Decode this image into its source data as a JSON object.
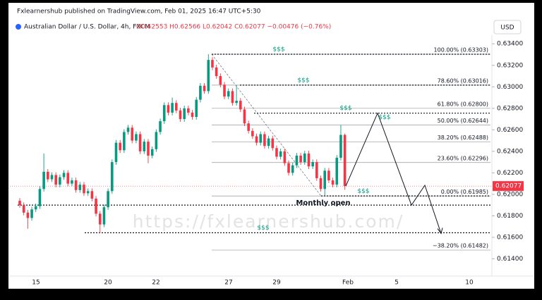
{
  "chart_data": {
    "type": "candlestick",
    "subtitle": "Fxlearnershub published on TradingView.com, Feb 01, 2025 16:47 UTC+5:30",
    "title": "Australian Dollar / U.S. Dollar, 4h, FXCM",
    "ohlc_text": "O0.62553 H0.62566 L0.62042 C0.62077 −0.00476 (−0.76%)",
    "currency": "USD",
    "watermark": "https://fxlearnershub.com/",
    "up_color": "#089981",
    "down_color": "#f23645",
    "ylim": [
      0.6124,
      0.6348
    ],
    "yticks": [
      {
        "value": 0.634,
        "label": "0.63400"
      },
      {
        "value": 0.632,
        "label": "0.63200"
      },
      {
        "value": 0.63,
        "label": "0.63000"
      },
      {
        "value": 0.628,
        "label": "0.62800"
      },
      {
        "value": 0.626,
        "label": "0.62600"
      },
      {
        "value": 0.624,
        "label": "0.62400"
      },
      {
        "value": 0.622,
        "label": "0.62200"
      },
      {
        "value": 0.62,
        "label": "0.62000"
      },
      {
        "value": 0.618,
        "label": "0.61800"
      },
      {
        "value": 0.616,
        "label": "0.61600"
      },
      {
        "value": 0.614,
        "label": "0.61400"
      }
    ],
    "xtick_labels": [
      "15",
      "20",
      "22",
      "27",
      "29",
      "Feb",
      "5",
      "10"
    ],
    "open": [
      0.6194,
      0.619,
      0.6183,
      0.6178,
      0.6186,
      0.6189,
      0.6205,
      0.6221,
      0.6214,
      0.6218,
      0.6209,
      0.6216,
      0.622,
      0.621,
      0.6213,
      0.6204,
      0.6209,
      0.6201,
      0.6203,
      0.6196,
      0.6182,
      0.6172,
      0.6188,
      0.6203,
      0.623,
      0.6248,
      0.6241,
      0.6258,
      0.6262,
      0.625,
      0.6256,
      0.624,
      0.6249,
      0.6236,
      0.6242,
      0.6258,
      0.6268,
      0.6283,
      0.6276,
      0.6285,
      0.6278,
      0.627,
      0.628,
      0.6276,
      0.6272,
      0.6288,
      0.6301,
      0.6296,
      0.6325,
      0.6318,
      0.631,
      0.6302,
      0.6291,
      0.6296,
      0.6285,
      0.6287,
      0.6279,
      0.6266,
      0.6259,
      0.6254,
      0.6248,
      0.6256,
      0.6245,
      0.6252,
      0.6243,
      0.6235,
      0.624,
      0.6229,
      0.622,
      0.6227,
      0.6236,
      0.623,
      0.6238,
      0.6226,
      0.623,
      0.6215,
      0.6205,
      0.6222,
      0.6213,
      0.6209,
      0.6234,
      0.62553
    ],
    "high": [
      0.61965,
      0.61925,
      0.61855,
      0.61885,
      0.61915,
      0.62075,
      0.6238,
      0.62235,
      0.62205,
      0.62205,
      0.62185,
      0.62225,
      0.62225,
      0.62155,
      0.62155,
      0.62115,
      0.62115,
      0.62055,
      0.62055,
      0.61985,
      0.61845,
      0.61905,
      0.62055,
      0.62325,
      0.62505,
      0.62505,
      0.62605,
      0.62645,
      0.62645,
      0.62585,
      0.62585,
      0.62515,
      0.62515,
      0.62445,
      0.62605,
      0.62705,
      0.62855,
      0.62855,
      0.629,
      0.62875,
      0.62805,
      0.62825,
      0.62825,
      0.62785,
      0.62905,
      0.63035,
      0.63035,
      0.63303,
      0.63275,
      0.63205,
      0.63125,
      0.63045,
      0.62985,
      0.62985,
      0.63016,
      0.62895,
      0.62815,
      0.62685,
      0.62615,
      0.62565,
      0.62585,
      0.62585,
      0.62545,
      0.62545,
      0.62455,
      0.62425,
      0.62425,
      0.62315,
      0.62295,
      0.62385,
      0.62385,
      0.62405,
      0.62405,
      0.62325,
      0.62325,
      0.62175,
      0.62245,
      0.62245,
      0.62155,
      0.62365,
      0.62644,
      0.62566
    ],
    "low": [
      0.61875,
      0.61805,
      0.6168,
      0.61755,
      0.61835,
      0.61865,
      0.62025,
      0.62115,
      0.62115,
      0.62065,
      0.62065,
      0.62135,
      0.62075,
      0.62075,
      0.62015,
      0.62015,
      0.61985,
      0.61985,
      0.61935,
      0.61795,
      0.6164,
      0.61695,
      0.61855,
      0.62005,
      0.62275,
      0.62385,
      0.62385,
      0.62555,
      0.62475,
      0.62475,
      0.62375,
      0.62375,
      0.6229,
      0.62335,
      0.62395,
      0.62555,
      0.62655,
      0.62735,
      0.62735,
      0.62755,
      0.62675,
      0.62675,
      0.62735,
      0.62695,
      0.62695,
      0.62855,
      0.62935,
      0.62935,
      0.63155,
      0.63075,
      0.62995,
      0.62885,
      0.62885,
      0.62825,
      0.62825,
      0.62765,
      0.62635,
      0.62565,
      0.62515,
      0.62455,
      0.62455,
      0.62425,
      0.62425,
      0.62405,
      0.62325,
      0.62325,
      0.62265,
      0.62175,
      0.62175,
      0.62245,
      0.62275,
      0.62275,
      0.62235,
      0.62235,
      0.62125,
      0.62025,
      0.61985,
      0.62105,
      0.62065,
      0.62065,
      0.62315,
      0.62042
    ],
    "close": [
      0.619,
      0.6183,
      0.6178,
      0.6186,
      0.6189,
      0.6205,
      0.6221,
      0.6214,
      0.6218,
      0.6209,
      0.6216,
      0.622,
      0.621,
      0.6213,
      0.6204,
      0.6209,
      0.6201,
      0.6203,
      0.6196,
      0.6182,
      0.6172,
      0.6188,
      0.6203,
      0.623,
      0.6248,
      0.6241,
      0.6258,
      0.6262,
      0.625,
      0.6256,
      0.624,
      0.6249,
      0.6236,
      0.6242,
      0.6258,
      0.6268,
      0.6283,
      0.6276,
      0.6285,
      0.6278,
      0.627,
      0.628,
      0.6276,
      0.6272,
      0.6288,
      0.6301,
      0.6296,
      0.6325,
      0.6318,
      0.631,
      0.6302,
      0.6291,
      0.6296,
      0.6285,
      0.6287,
      0.6279,
      0.6266,
      0.6259,
      0.6254,
      0.6248,
      0.6256,
      0.6245,
      0.6252,
      0.6243,
      0.6235,
      0.624,
      0.6229,
      0.622,
      0.6227,
      0.6236,
      0.623,
      0.6238,
      0.6226,
      0.623,
      0.6215,
      0.6205,
      0.6222,
      0.6213,
      0.6209,
      0.6234,
      0.62553,
      0.62077
    ],
    "fib_levels": [
      {
        "value": 0.63303,
        "label": "100.00% (0.63303)"
      },
      {
        "value": 0.63016,
        "label": "78.60% (0.63016)"
      },
      {
        "value": 0.628,
        "label": "61.80% (0.62800)"
      },
      {
        "value": 0.62644,
        "label": "50.00% (0.62644)"
      },
      {
        "value": 0.62488,
        "label": "38.20% (0.62488)"
      },
      {
        "value": 0.62296,
        "label": "23.60% (0.62296)"
      },
      {
        "value": 0.61985,
        "label": "0.00% (0.61985)"
      },
      {
        "value": 0.61482,
        "label": "−38.20% (0.61482)"
      }
    ],
    "liquidity": [
      {
        "price": 0.63303,
        "label": "$$$"
      },
      {
        "price": 0.63016,
        "label": "$$$"
      },
      {
        "price": 0.62755,
        "label": "$$$"
      },
      {
        "price": 0.6267,
        "label": "$$$"
      },
      {
        "price": 0.61985,
        "label": "$$$"
      },
      {
        "price": 0.61643,
        "label": "$$$"
      }
    ],
    "monthly_open": {
      "price": 0.619,
      "label": "Monthly open"
    },
    "projection": [
      0.62077,
      0.62755,
      0.619,
      0.62084,
      0.61636
    ]
  }
}
